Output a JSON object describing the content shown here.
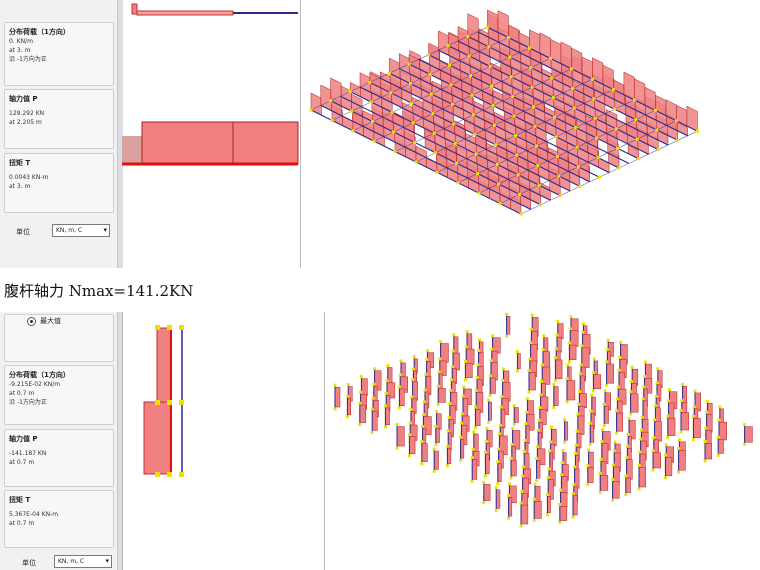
{
  "top_panel": {
    "dist_load_title": "分布荷载（1方向）",
    "dist_load_lines": [
      "0. KN/m",
      "at 3. m",
      "沿 -1方向为正"
    ],
    "axial_title": "轴力值 P",
    "axial_lines": [
      "129.292 KN",
      "at 2.205 m"
    ],
    "torque_title": "扭矩 T",
    "torque_lines": [
      "0.0043 KN-m",
      "at 3. m"
    ],
    "unit_label": "单位",
    "unit_value": "KN, m, C"
  },
  "heading": "腹杆轴力 Nmax=141.2KN",
  "bottom_panel": {
    "radio_label": "最大值",
    "dist_load_title": "分布荷载（1方向）",
    "dist_load_lines": [
      "-9.215E-02 KN/m",
      "at 0.7 m",
      "沿 -1方向为正"
    ],
    "axial_title": "轴力值 P",
    "axial_lines": [
      "-141.187 KN",
      "at 0.7 m"
    ],
    "torque_title": "扭矩 T",
    "torque_lines": [
      "5.367E-04 KN-m",
      "at 0.7 m"
    ],
    "unit_label": "单位",
    "unit_value": "KN, m, C"
  },
  "colors": {
    "diagram_fill": "#f08080",
    "diagram_edge": "#e01010",
    "member_line": "#2a2a90",
    "node": "#f0e000"
  }
}
